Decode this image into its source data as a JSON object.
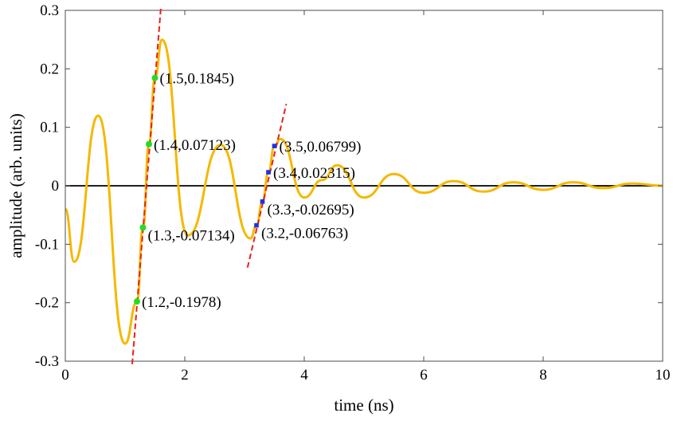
{
  "chart_data": {
    "type": "line",
    "xlabel": "time (ns)",
    "ylabel": "amplitude (arb. units)",
    "xlim": [
      0,
      10
    ],
    "ylim": [
      -0.3,
      0.3
    ],
    "xticks": [
      0,
      2,
      4,
      6,
      8,
      10
    ],
    "xtick_labels": [
      "0",
      "2",
      "4",
      "6",
      "8",
      "10"
    ],
    "yticks": [
      0.3,
      0.2,
      0.1,
      0,
      -0.1,
      -0.2,
      -0.3
    ],
    "ytick_labels": [
      "0.3",
      "0.2",
      "0.1",
      "0",
      "-0.1",
      "-0.2",
      "-0.3"
    ],
    "grid": false,
    "box": true,
    "signal": {
      "color": "#f5b800",
      "x": [
        0,
        0.15,
        0.55,
        1.0,
        1.2,
        1.3,
        1.4,
        1.5,
        1.62,
        2.05,
        2.6,
        3.1,
        3.2,
        3.3,
        3.4,
        3.5,
        3.6,
        4.0,
        4.3,
        4.55,
        5.0,
        5.5,
        6.0,
        6.5,
        7.0,
        7.5,
        8.0,
        8.5,
        9.0,
        9.5,
        10.0
      ],
      "y": [
        -0.04,
        -0.13,
        0.12,
        -0.27,
        -0.1978,
        -0.07134,
        0.07123,
        0.1845,
        0.25,
        -0.085,
        0.07,
        -0.09,
        -0.06763,
        -0.02695,
        0.02315,
        0.06799,
        0.08,
        -0.02,
        0.01,
        0.035,
        -0.02,
        0.02,
        -0.012,
        0.008,
        -0.01,
        0.006,
        -0.007,
        0.006,
        -0.004,
        0.004,
        0.0
      ]
    },
    "zero_line": {
      "y": 0,
      "color": "#000000"
    },
    "fit_lines": [
      {
        "color": "#e8221b",
        "x": [
          1.12,
          1.6
        ],
        "y": [
          -0.305,
          0.305
        ]
      },
      {
        "color": "#e8221b",
        "x": [
          3.05,
          3.7
        ],
        "y": [
          -0.14,
          0.14
        ]
      }
    ],
    "markers": [
      {
        "x": 1.2,
        "y": -0.1978,
        "color": "#22dd22",
        "label": "(1.2,-0.1978)",
        "label_pos": "right"
      },
      {
        "x": 1.3,
        "y": -0.07134,
        "color": "#22dd22",
        "label": "(1.3,-0.07134)",
        "label_pos": "below-right"
      },
      {
        "x": 1.4,
        "y": 0.07123,
        "color": "#22dd22",
        "label": "(1.4,0.07123)",
        "label_pos": "right"
      },
      {
        "x": 1.5,
        "y": 0.1845,
        "color": "#22dd22",
        "label": "(1.5,0.1845)",
        "label_pos": "right"
      },
      {
        "x": 3.2,
        "y": -0.06763,
        "color": "#1a33e6",
        "label": "(3.2,-0.06763)",
        "label_pos": "below-right"
      },
      {
        "x": 3.3,
        "y": -0.02695,
        "color": "#1a33e6",
        "label": "(3.3,-0.02695)",
        "label_pos": "below-right"
      },
      {
        "x": 3.4,
        "y": 0.02315,
        "color": "#1a33e6",
        "label": "(3.4,0.02315)",
        "label_pos": "right"
      },
      {
        "x": 3.5,
        "y": 0.06799,
        "color": "#1a33e6",
        "label": "(3.5,0.06799)",
        "label_pos": "right"
      }
    ]
  }
}
